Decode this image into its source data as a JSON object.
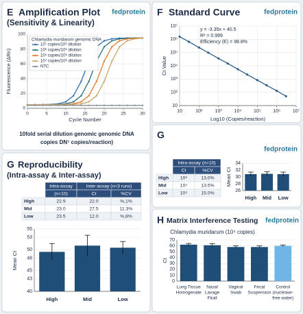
{
  "chart_data": [
    {
      "type": "line",
      "panel": "E",
      "title": "Amplification Plot",
      "subtitle": "(Sensitivity & Linearity)",
      "brand": "fedprotein",
      "legend_title": "Chlamydia muridarum genomic DNA",
      "legend": "upper left",
      "x": [
        0,
        2,
        4,
        6,
        8,
        10,
        12,
        14,
        16,
        18,
        20,
        22,
        24,
        26,
        28,
        30
      ],
      "series": [
        {
          "name": "10⁷ copies/10⁸ dilution",
          "color": "#2f6fb0",
          "values": [
            5,
            5,
            5.1,
            5.3,
            6.1,
            8.8,
            17,
            36.4,
            63.6,
            83.1,
            91.2,
            93.9,
            94.7,
            95,
            95,
            95
          ]
        },
        {
          "name": "10⁶ copies/10⁶ dilution",
          "color": "#2a6f78",
          "values": [
            5,
            5,
            5,
            5.1,
            5.3,
            6.1,
            8.8,
            17,
            36.4,
            63.6,
            83.1,
            91.2,
            93.9,
            94.7,
            95,
            95
          ]
        },
        {
          "name": "10⁵ copies/10⁶ dilution",
          "color": "#e07b2a",
          "values": [
            5,
            5,
            5,
            5,
            5.1,
            5.3,
            6.1,
            8.8,
            17,
            36.4,
            63.6,
            83.1,
            91.2,
            93.9,
            94.7,
            95
          ]
        },
        {
          "name": "10⁴ copies/10⁶ dilution",
          "color": "#c9a46a",
          "values": [
            5,
            5,
            5,
            5,
            5,
            5.1,
            5.3,
            6.1,
            8.8,
            17,
            36.4,
            63.6,
            83.1,
            91.2,
            93.9,
            94.7
          ]
        },
        {
          "name": "NTC",
          "color": "#8a8f96",
          "values": [
            4,
            4,
            4,
            4,
            4,
            4,
            4,
            4,
            4,
            4,
            4,
            4,
            4,
            4,
            4,
            4
          ]
        }
      ],
      "xlabel": "Cycle Number",
      "ylabel": "Fluorescence (ΔRn)",
      "xlim": [
        0,
        30
      ],
      "xticks": [
        0,
        5,
        10,
        15,
        20,
        25,
        30
      ],
      "ylim": [
        0,
        100
      ],
      "yticks": [
        0,
        20,
        40,
        60,
        80,
        100
      ],
      "grid": true,
      "caption": [
        "10fold serial dilution genomic genomic DNA",
        "copies DN⁷ copies/reaction)"
      ]
    },
    {
      "type": "scatter",
      "panel": "F",
      "title": "Standard Curve",
      "brand": "fedprotein",
      "annotations": [
        "y = -3.35x + 40.5",
        "R² = 0.999",
        "Efficiency (E) = 98.8%"
      ],
      "x": [
        10,
        30,
        100,
        300,
        1000,
        3000,
        10000,
        30000,
        100000,
        300000,
        1000000,
        3000000
      ],
      "series": [
        {
          "color": "#2e5f8a",
          "values": [
            1580000,
            650000,
            240000,
            98000,
            36000,
            15000,
            5500,
            2200,
            830,
            340,
            130,
            51
          ]
        }
      ],
      "xlabel": "Log10 (Copies/reaction)",
      "ylabel": "Ct Value",
      "xscale": "log",
      "yscale": "log",
      "xlim": [
        10,
        10000000
      ],
      "xticks": [
        10,
        {
          "value": 100,
          "label": "10²"
        },
        {
          "value": 1000,
          "label": "10³"
        },
        {
          "value": 10000,
          "label": "10⁴"
        },
        {
          "value": 100000,
          "label": "10⁵"
        },
        {
          "value": 1000000,
          "label": "10⁶"
        },
        {
          "value": 10000000,
          "label": "10⁷"
        }
      ],
      "ylim": [
        10,
        10000000
      ],
      "yticks": [
        10,
        {
          "value": 100,
          "label": "10²"
        },
        {
          "value": 1000,
          "label": "10³"
        },
        {
          "value": 10000,
          "label": "10⁴"
        },
        {
          "value": 100000,
          "label": "10⁵"
        },
        {
          "value": 1000000,
          "label": "10⁶"
        },
        {
          "value": 10000000,
          "label": "10⁷"
        }
      ],
      "grid": true
    },
    {
      "type": "bar",
      "panel": "G",
      "brand": "fedprotein",
      "table": {
        "header_rows": [
          [
            "Intra-assay (n=10)"
          ],
          [
            "Ct",
            "%CV"
          ]
        ],
        "rows": [
          [
            "High",
            "10⁶",
            "13.0%"
          ],
          [
            "Mid",
            "10⁵",
            "13.5%"
          ],
          [
            "Low",
            "10⁴",
            "15.0%"
          ]
        ]
      },
      "categories": [
        "High",
        "Mid",
        "Low"
      ],
      "values": [
        30.8,
        30.9,
        30.8
      ],
      "errors": [
        0.6,
        0.6,
        0.6
      ],
      "color": "#1f4e79",
      "ylabel": "Mean Ct",
      "ylim": [
        26,
        34
      ],
      "yticks": [
        26,
        28,
        30,
        32,
        34
      ],
      "grid": true
    },
    {
      "type": "bar",
      "panel": "G",
      "title": "Reproducibility",
      "subtitle": "(Intra-assay & Inter-assay)",
      "table": {
        "header_rows": [
          [
            "Intra-assay",
            "Inter-assay (n=3 runs)"
          ],
          [
            "(n=10)",
            "Ct",
            "%CV"
          ]
        ],
        "rows": [
          [
            "High",
            "22.9",
            "22.0",
            "%,1%"
          ],
          [
            "Mid",
            "23.0",
            "27.5",
            "11.3%"
          ],
          [
            "Low",
            "23.5",
            "12.0",
            "%,8%"
          ]
        ]
      },
      "categories": [
        "High",
        "Mid",
        "Low"
      ],
      "values": [
        49.5,
        51,
        50.5
      ],
      "errors": [
        2,
        2.5,
        1.5
      ],
      "color": "#1f4e79",
      "ylabel": "Mean Ct",
      "ylim": [
        40,
        55
      ],
      "yticks": [
        40,
        43,
        45,
        48,
        50,
        53,
        55
      ],
      "grid": true
    },
    {
      "type": "bar",
      "panel": "H",
      "title": "Matrix Interference Testing",
      "brand": "fedprotein",
      "subtitle": "Chlamydia muridarum (10⁴ copies)",
      "categories": [
        [
          "Lung Tissue",
          "Homogenate"
        ],
        [
          "Nasal",
          "Lavage",
          "Fluid"
        ],
        [
          "Vaginal",
          "Swab"
        ],
        [
          "Fecal",
          "Suspension"
        ],
        [
          "Control",
          "(nuclease-",
          "free water)"
        ]
      ],
      "values": [
        62,
        61,
        58,
        58,
        60
      ],
      "errors": [
        2,
        2.5,
        2,
        2,
        1.5
      ],
      "colors": [
        "#1f4e79",
        "#1f4e79",
        "#1f4e79",
        "#1f4e79",
        "#6fb6e6"
      ],
      "ylabel": "Ct",
      "ylim": [
        0,
        70
      ],
      "yticks": [
        0,
        10,
        20,
        30,
        40,
        50,
        60,
        70
      ],
      "grid": true
    }
  ]
}
